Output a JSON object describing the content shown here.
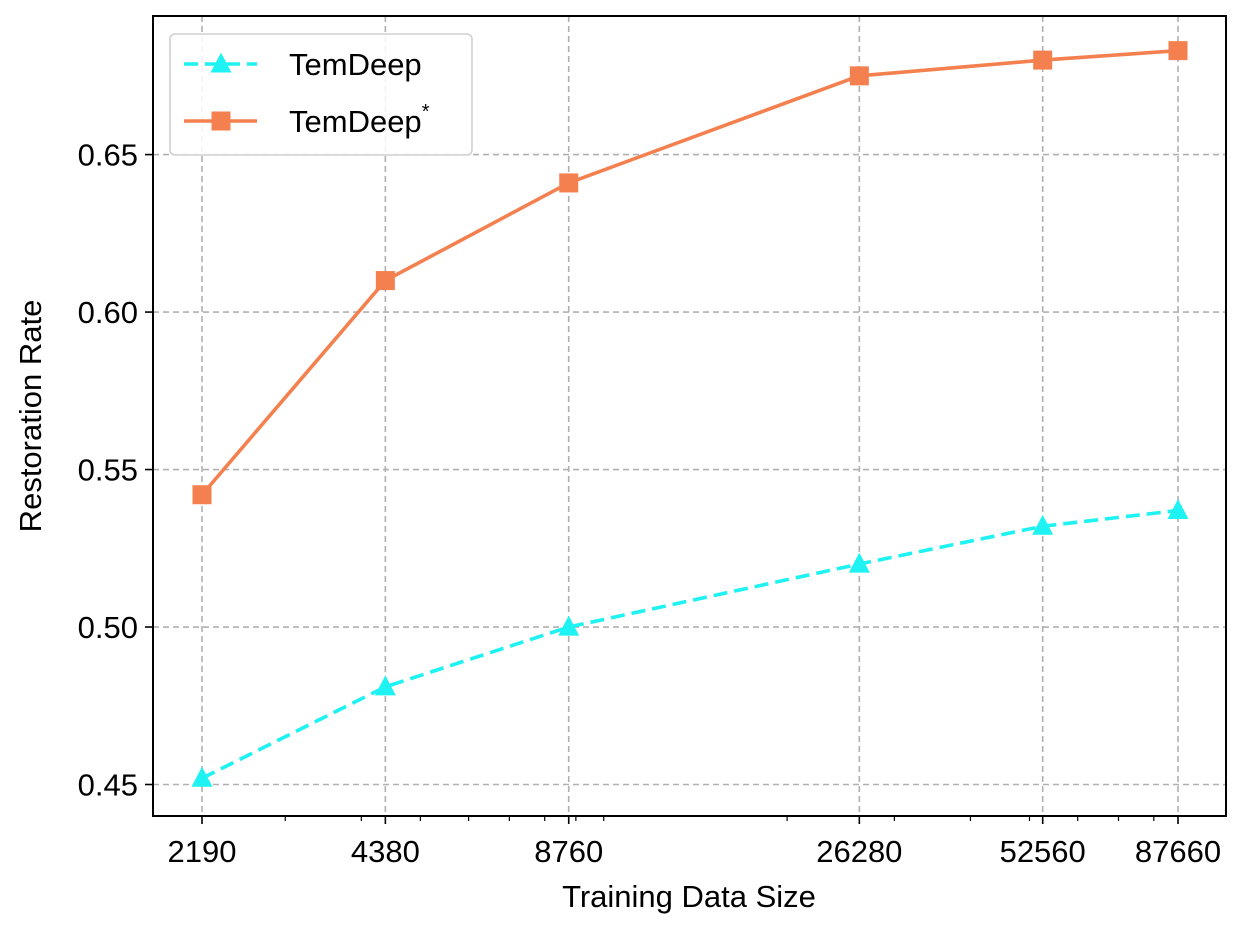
{
  "chart_data": {
    "type": "line",
    "xlabel": "Training Data Size",
    "ylabel": "Restoration Rate",
    "x_scale": "log",
    "x": [
      2190,
      4380,
      8760,
      26280,
      52560,
      87660
    ],
    "x_tick_labels": [
      "2190",
      "4380",
      "8760",
      "26280",
      "52560",
      "87660"
    ],
    "ylim": [
      0.44,
      0.694
    ],
    "y_ticks": [
      0.45,
      0.5,
      0.55,
      0.6,
      0.65
    ],
    "y_tick_labels": [
      "0.45",
      "0.50",
      "0.55",
      "0.60",
      "0.65"
    ],
    "grid": true,
    "legend_position": "top-left",
    "series": [
      {
        "name": "TemDeep",
        "values": [
          0.452,
          0.481,
          0.5,
          0.52,
          0.532,
          0.537
        ],
        "color": "#1ef2f2",
        "line_style": "dashed",
        "marker": "triangle"
      },
      {
        "name": "TemDeep",
        "name_superscript": "*",
        "values": [
          0.542,
          0.61,
          0.641,
          0.675,
          0.68,
          0.683
        ],
        "color": "#f5804f",
        "line_style": "solid",
        "marker": "square"
      }
    ]
  }
}
